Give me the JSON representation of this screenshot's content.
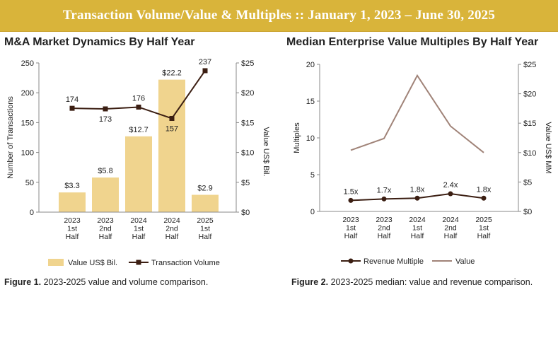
{
  "banner": {
    "title": "Transaction Volume/Value & Multiples  ::  January 1, 2023 – June 30, 2025"
  },
  "captions": {
    "fig1_label": "Figure 1.",
    "fig1_text": " 2023-2025 value and volume comparison.",
    "fig2_label": "Figure 2.",
    "fig2_text": " 2023-2025 median: value and revenue comparison."
  },
  "colors": {
    "bar": "#f0d48e",
    "volume_line": "#3b1e12",
    "value_line": "#a08378",
    "axis": "#888888"
  },
  "chart_data": [
    {
      "type": "bar",
      "title": "M&A Market Dynamics By Half Year",
      "categories": [
        [
          "2023",
          "1st",
          "Half"
        ],
        [
          "2023",
          "2nd",
          "Half"
        ],
        [
          "2024",
          "1st",
          "Half"
        ],
        [
          "2024",
          "2nd",
          "Half"
        ],
        [
          "2025",
          "1st",
          "Half"
        ]
      ],
      "ylabel": "Number of Transactions",
      "y2label": "Value US$ Bil.",
      "ylim": [
        0,
        250
      ],
      "y2lim": [
        0,
        25
      ],
      "yticks": [
        "0",
        "50",
        "100",
        "150",
        "200",
        "250"
      ],
      "y2ticks": [
        "$0",
        "$5",
        "$10",
        "$15",
        "$20",
        "$25"
      ],
      "legend_position": "bottom",
      "series": [
        {
          "name": "Value US$ Bil.",
          "kind": "bar",
          "axis": "right",
          "values": [
            3.3,
            5.8,
            12.7,
            22.2,
            2.9
          ],
          "labels": [
            "$3.3",
            "$5.8",
            "$12.7",
            "$22.2",
            "$2.9"
          ]
        },
        {
          "name": "Transaction Volume",
          "kind": "line",
          "axis": "left",
          "values": [
            174,
            173,
            176,
            157,
            237
          ],
          "labels": [
            "174",
            "173",
            "176",
            "157",
            "237"
          ]
        }
      ]
    },
    {
      "type": "line",
      "title": "Median Enterprise Value Multiples By Half Year",
      "categories": [
        [
          "2023",
          "1st",
          "Half"
        ],
        [
          "2023",
          "2nd",
          "Half"
        ],
        [
          "2024",
          "1st",
          "Half"
        ],
        [
          "2024",
          "2nd",
          "Half"
        ],
        [
          "2025",
          "1st",
          "Half"
        ]
      ],
      "ylabel": "Multiples",
      "y2label": "Value US$ MM",
      "ylim": [
        0,
        20
      ],
      "y2lim": [
        0,
        25
      ],
      "yticks": [
        "0",
        "5",
        "10",
        "15",
        "20"
      ],
      "y2ticks": [
        "$0",
        "$5",
        "$10",
        "$15",
        "$20",
        "$25"
      ],
      "legend_position": "bottom",
      "series": [
        {
          "name": "Revenue Multiple",
          "kind": "line",
          "axis": "left",
          "values": [
            1.5,
            1.7,
            1.8,
            2.4,
            1.8
          ],
          "labels": [
            "1.5x",
            "1.7x",
            "1.8x",
            "2.4x",
            "1.8x"
          ]
        },
        {
          "name": "Value",
          "kind": "line",
          "axis": "right",
          "values": [
            10.4,
            12.4,
            23.1,
            14.5,
            10.0
          ]
        }
      ]
    }
  ]
}
